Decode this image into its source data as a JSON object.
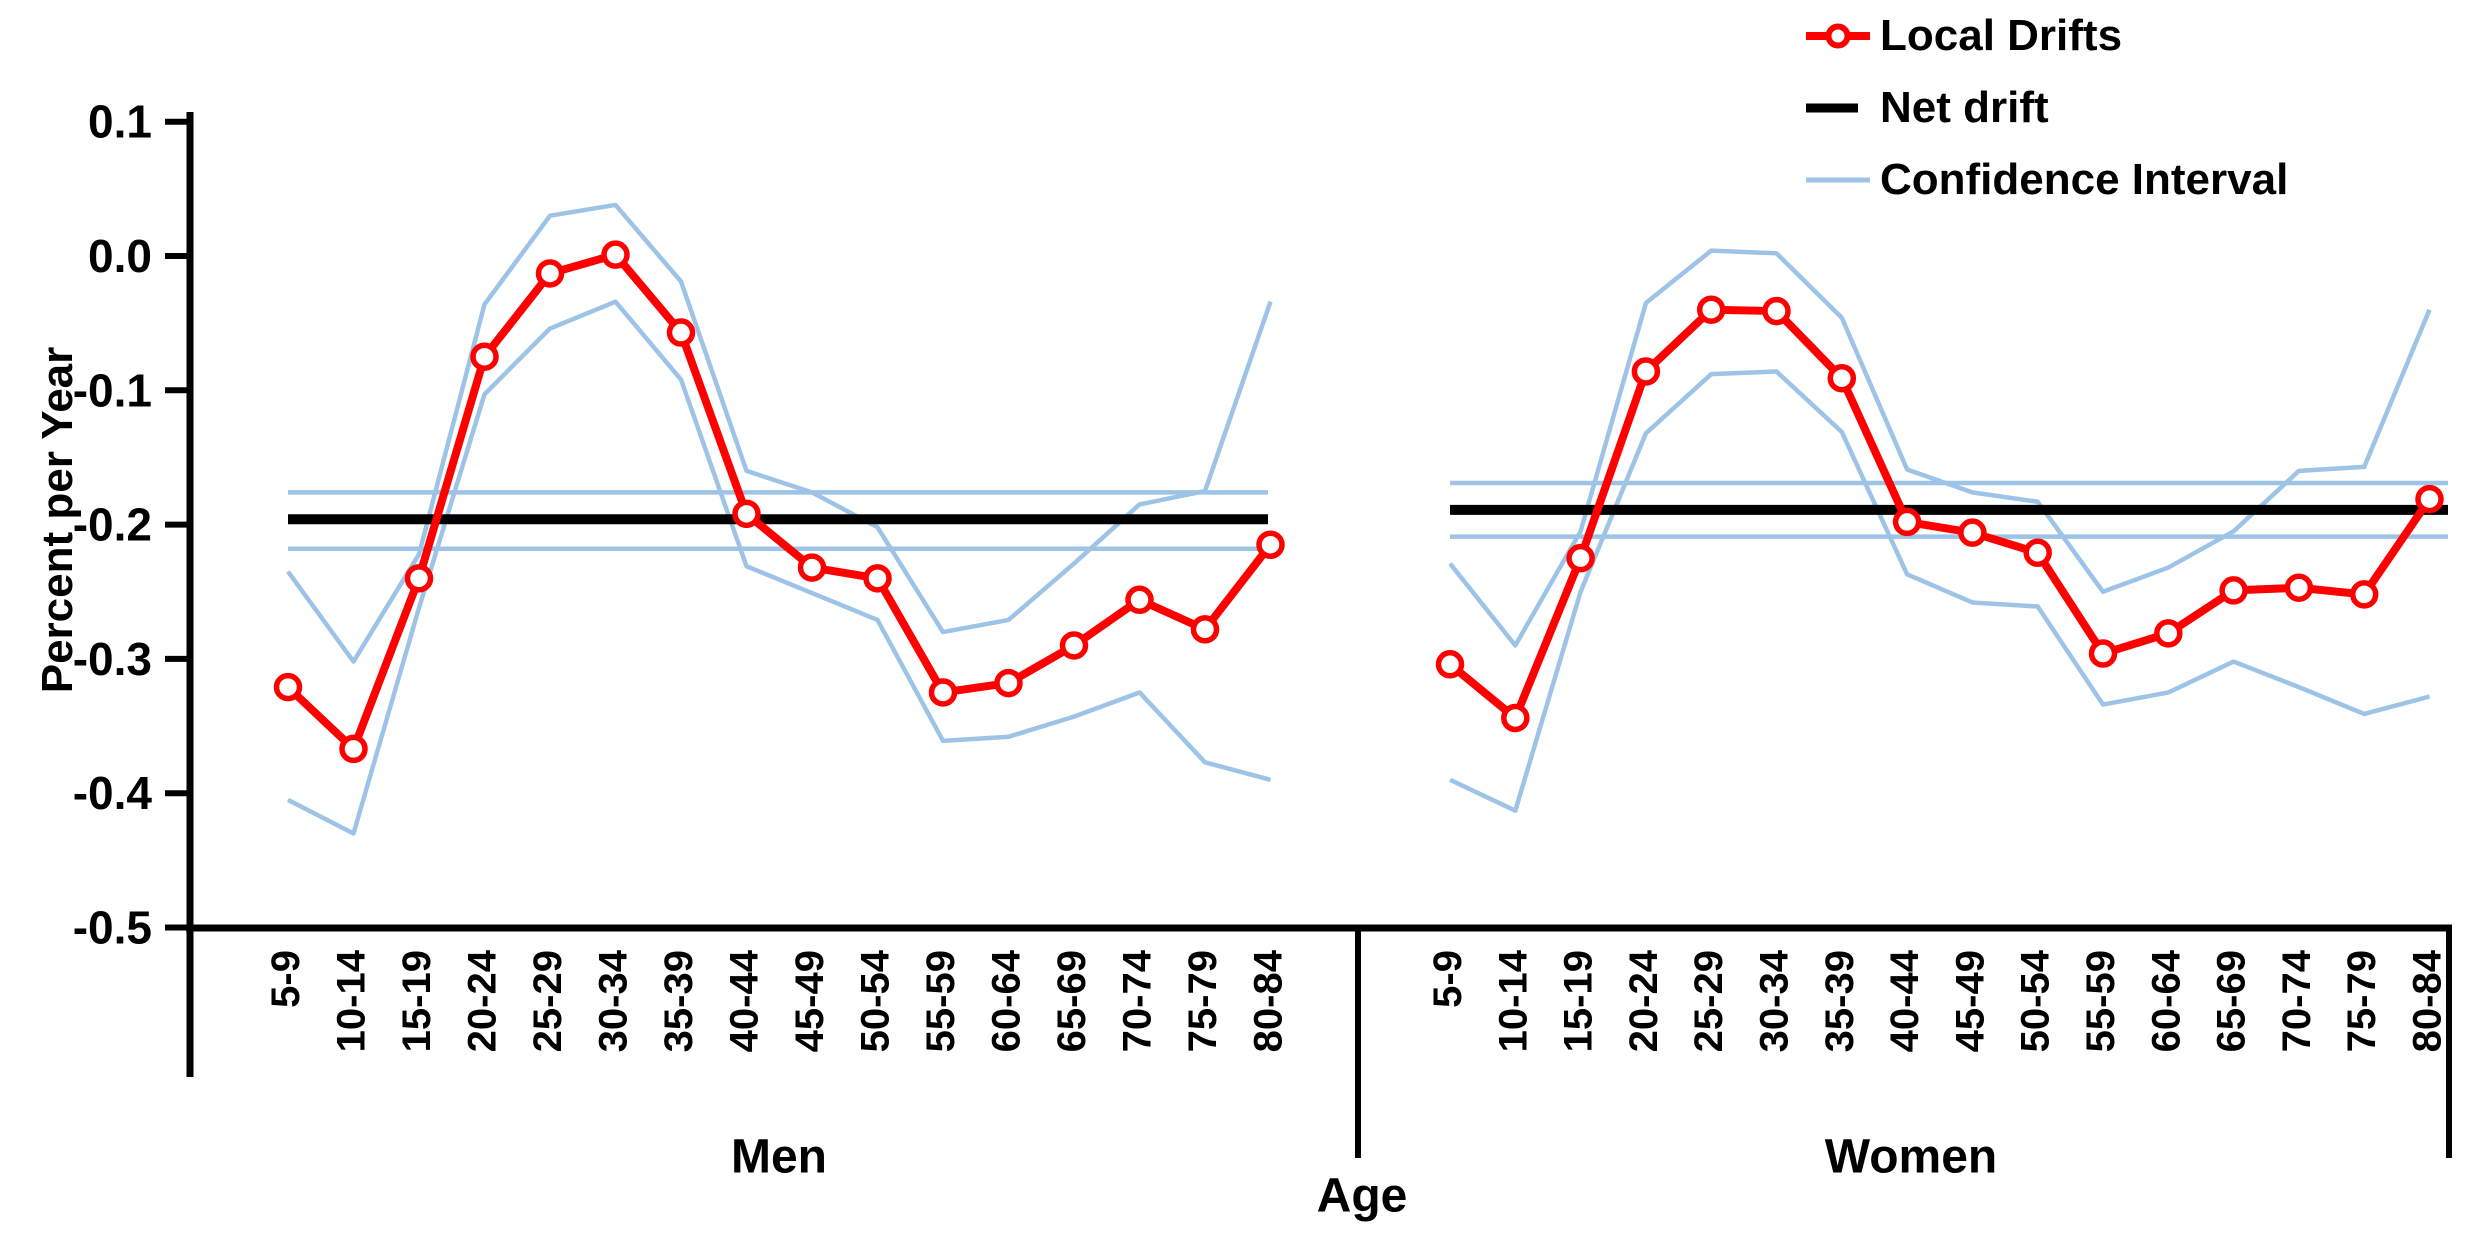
{
  "colors": {
    "local_drifts": "#FF0000",
    "net_drift": "#000000",
    "confidence_interval": "#9DC3E6",
    "text": "#000000",
    "background": "#FFFFFF"
  },
  "figure": {
    "ylabel": "Percent per Year",
    "xlabel": "Age",
    "legend": [
      {
        "label": "Local Drifts",
        "swatch": "red-line-with-circle-marker"
      },
      {
        "label": "Net drift",
        "swatch": "black-line"
      },
      {
        "label": "Confidence Interval",
        "swatch": "light-blue-line"
      }
    ]
  },
  "chart_data": {
    "type": "line",
    "title": "",
    "xlabel": "Age",
    "ylabel": "Percent per Year",
    "ylim": [
      -0.5,
      0.1
    ],
    "yticks": [
      0.1,
      0.0,
      -0.1,
      -0.2,
      -0.3,
      -0.4,
      -0.5
    ],
    "ytick_labels": [
      "0.1",
      "0.0",
      "-0.1",
      "-0.2",
      "-0.3",
      "-0.4",
      "-0.5"
    ],
    "grid": false,
    "legend_position": "top-right",
    "categories": [
      "5-9",
      "10-14",
      "15-19",
      "20-24",
      "25-29",
      "30-34",
      "35-39",
      "40-44",
      "45-49",
      "50-54",
      "55-59",
      "60-64",
      "65-69",
      "70-74",
      "75-79",
      "80-84"
    ],
    "panels": [
      {
        "label": "Men",
        "net_drift": -0.196,
        "net_drift_ci": [
          -0.176,
          -0.218
        ],
        "series": {
          "local_drifts": [
            -0.321,
            -0.367,
            -0.24,
            -0.075,
            -0.013,
            0.001,
            -0.057,
            -0.192,
            -0.232,
            -0.24,
            -0.325,
            -0.318,
            -0.29,
            -0.256,
            -0.278,
            -0.215
          ],
          "ci_upper": [
            -0.235,
            -0.302,
            -0.222,
            -0.036,
            0.03,
            0.038,
            -0.019,
            -0.16,
            -0.176,
            -0.202,
            -0.28,
            -0.271,
            -0.229,
            -0.185,
            -0.175,
            -0.034
          ],
          "ci_lower": [
            -0.405,
            -0.43,
            -0.262,
            -0.103,
            -0.054,
            -0.034,
            -0.092,
            -0.231,
            -0.251,
            -0.271,
            -0.361,
            -0.358,
            -0.343,
            -0.325,
            -0.377,
            -0.39
          ]
        }
      },
      {
        "label": "Women",
        "net_drift": -0.189,
        "net_drift_ci": [
          -0.169,
          -0.209
        ],
        "series": {
          "local_drifts": [
            -0.304,
            -0.344,
            -0.225,
            -0.086,
            -0.04,
            -0.041,
            -0.091,
            -0.198,
            -0.206,
            -0.221,
            -0.296,
            -0.281,
            -0.249,
            -0.247,
            -0.252,
            -0.181
          ],
          "ci_upper": [
            -0.229,
            -0.29,
            -0.205,
            -0.035,
            0.004,
            0.002,
            -0.046,
            -0.159,
            -0.176,
            -0.183,
            -0.25,
            -0.232,
            -0.205,
            -0.16,
            -0.157,
            -0.04
          ],
          "ci_lower": [
            -0.39,
            -0.413,
            -0.25,
            -0.132,
            -0.088,
            -0.086,
            -0.131,
            -0.237,
            -0.258,
            -0.261,
            -0.334,
            -0.325,
            -0.302,
            -0.321,
            -0.341,
            -0.328
          ]
        }
      }
    ]
  }
}
